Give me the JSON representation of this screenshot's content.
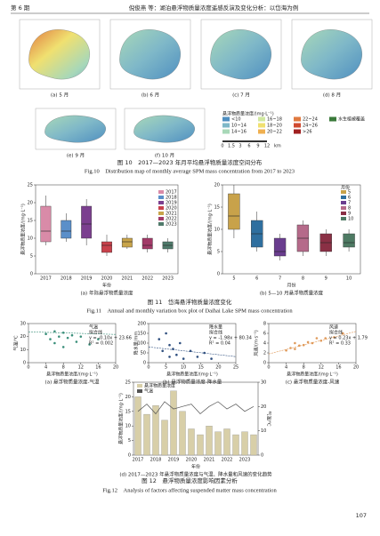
{
  "header": {
    "issue": "第 6 期",
    "running_title": "倪俊燕 等：湖泊悬浮物质量浓度遥感反演及变化分析：以岱海为例"
  },
  "figure10": {
    "panels": [
      "(a) 5 月",
      "(b) 6 月",
      "(c) 7 月",
      "(d) 8 月",
      "(e) 9 月",
      "(f) 10 月"
    ],
    "legend": {
      "title": "悬浮物质量浓度/(mg·L⁻¹)",
      "items": [
        {
          "label": "<10",
          "color": "#4f8fc0"
        },
        {
          "label": "10~14",
          "color": "#7fb8c8"
        },
        {
          "label": "14~16",
          "color": "#a8d8b8"
        },
        {
          "label": "16~18",
          "color": "#d0e8a0"
        },
        {
          "label": "18~20",
          "color": "#f0e070"
        },
        {
          "label": "20~22",
          "color": "#f0b050"
        },
        {
          "label": "22~24",
          "color": "#e07a40"
        },
        {
          "label": "24~26",
          "color": "#d04a30"
        },
        {
          "label": ">26",
          "color": "#a02020"
        },
        {
          "label": "水生植被覆盖",
          "color": "#3a7a3a"
        }
      ]
    },
    "scale_labels": [
      "0",
      "1.5",
      "3",
      "6",
      "9",
      "12"
    ],
    "scale_unit": "km",
    "caption_cn": "图 10　2017—2023 年月平均悬浮物质量浓度空间分布",
    "caption_en": "Fig.10　Distribution map of monthly average SPM mass concentration from 2017 to 2023"
  },
  "figure11": {
    "charts": [
      {
        "type": "box",
        "sublabel": "(a) 年际悬浮物质量浓度",
        "xlabel": "年份",
        "ylabel": "悬浮物质量浓度/(mg·L⁻¹)",
        "categories": [
          "2017",
          "2018",
          "2019",
          "2020",
          "2021",
          "2022",
          "2023"
        ],
        "colors": [
          "#d98ba8",
          "#5b8fc9",
          "#7b3f8f",
          "#c8414b",
          "#c8a44a",
          "#a23a68",
          "#4f7a6b"
        ],
        "boxes": [
          [
            8,
            9,
            12,
            19,
            22
          ],
          [
            9,
            10,
            12,
            15,
            17
          ],
          [
            8,
            10,
            14,
            19,
            21
          ],
          [
            5,
            6,
            8,
            9,
            11
          ],
          [
            7,
            7.5,
            9,
            10,
            11
          ],
          [
            6,
            7,
            8,
            10,
            11
          ],
          [
            6,
            7,
            8,
            9,
            10
          ]
        ],
        "ylim": [
          0,
          25
        ],
        "yticks": [
          0,
          5,
          10,
          15,
          20,
          25
        ]
      },
      {
        "type": "box",
        "sublabel": "(b) 5—10 月悬浮物质量浓度",
        "xlabel": "月份",
        "ylabel": "悬浮物质量浓度/(mg·L⁻¹)",
        "legend_title": "月份",
        "categories": [
          "5",
          "6",
          "7",
          "8",
          "9",
          "10"
        ],
        "colors": [
          "#c8a24a",
          "#2f6f9f",
          "#6a3d8f",
          "#b56a8a",
          "#8a3045",
          "#4e7a63"
        ],
        "boxes": [
          [
            8,
            10,
            13,
            18,
            20
          ],
          [
            5,
            6,
            9,
            12,
            14
          ],
          [
            3,
            4,
            5,
            8,
            9
          ],
          [
            4,
            5,
            8,
            11,
            12
          ],
          [
            4,
            5,
            7,
            9,
            10
          ],
          [
            5,
            6,
            7,
            9,
            10
          ]
        ],
        "ylim": [
          0,
          20
        ],
        "yticks": [
          0,
          5,
          10,
          15,
          20
        ]
      }
    ],
    "caption_cn": "图 11　岱海悬浮物质量浓度变化",
    "caption_en": "Fig.11　Annual and monthly variation box plot of Daihai Lake SPM mass concentration"
  },
  "figure12": {
    "charts": [
      {
        "type": "scatter",
        "sublabel": "(a) 悬浮物质量浓度-气温",
        "xlabel": "悬浮物质量浓度/(mg·L⁻¹)",
        "ylabel": "气温/℃",
        "series_name": "气温",
        "fit_name": "拟合线",
        "annotations": [
          "y = -0.10x + 23.66",
          "R² = 0.002"
        ],
        "color": "#3a8f7a",
        "x": [
          4,
          5,
          6,
          6,
          7,
          8,
          8,
          9,
          10,
          11,
          12,
          14,
          16
        ],
        "y": [
          22,
          18,
          24,
          15,
          20,
          23,
          12,
          19,
          21,
          16,
          20,
          14,
          18
        ],
        "fit_x": [
          0,
          20
        ],
        "fit_y": [
          23.66,
          21.66
        ],
        "xlim": [
          0,
          20
        ],
        "xticks": [
          0,
          4,
          8,
          12,
          16,
          20
        ],
        "ylim": [
          0,
          30
        ],
        "yticks": [
          0,
          10,
          20,
          30
        ]
      },
      {
        "type": "scatter",
        "sublabel": "(b) 悬浮物质量浓度-降水量",
        "xlabel": "悬浮物质量浓度/(mg·L⁻¹)",
        "ylabel": "降水量/mm",
        "series_name": "降水量",
        "fit_name": "拟合线",
        "annotations": [
          "y = -1.98x + 80.34",
          "R² = 0.04"
        ],
        "color": "#2f4f7f",
        "x": [
          3,
          4,
          5,
          6,
          6,
          7,
          8,
          9,
          10,
          12,
          14,
          16,
          18
        ],
        "y": [
          120,
          60,
          150,
          30,
          90,
          70,
          40,
          100,
          20,
          60,
          30,
          50,
          20
        ],
        "fit_x": [
          0,
          25
        ],
        "fit_y": [
          80.34,
          30.84
        ],
        "xlim": [
          0,
          25
        ],
        "xticks": [
          0,
          5,
          10,
          15,
          20,
          25
        ],
        "ylim": [
          0,
          200
        ],
        "yticks": [
          0,
          50,
          100,
          150,
          200
        ]
      },
      {
        "type": "scatter",
        "sublabel": "(c) 悬浮物质量浓度-风速",
        "xlabel": "悬浮物质量浓度/(mg·L⁻¹)",
        "ylabel": "风速/(m·s⁻¹)",
        "series_name": "风速",
        "fit_name": "拟合线",
        "annotations": [
          "y = 0.23x + 1.79",
          "R² = 0.33"
        ],
        "color": "#e09a5a",
        "x": [
          4,
          5,
          6,
          6,
          7,
          8,
          9,
          10,
          11,
          12,
          13,
          15,
          17
        ],
        "y": [
          2.5,
          3,
          2.8,
          4,
          3.5,
          3.6,
          4.2,
          4,
          5,
          4.5,
          5,
          5.2,
          6
        ],
        "fit_x": [
          0,
          20
        ],
        "fit_y": [
          1.79,
          6.39
        ],
        "xlim": [
          0,
          20
        ],
        "xticks": [
          0,
          4,
          8,
          12,
          16,
          20
        ],
        "ylim": [
          0,
          8
        ],
        "yticks": [
          0,
          2,
          4,
          6,
          8
        ]
      },
      {
        "type": "barline",
        "sublabel": "(d) 2017—2023 年悬浮物质量浓度与气温、降水量和风速的变化趋势",
        "xlabel": "年份",
        "ylabel": "悬浮物质量浓度/(mg·L⁻¹)",
        "y2label": "气温/℃",
        "categories": [
          "2017",
          null,
          "2018",
          null,
          "2019",
          null,
          "2020",
          null,
          "2021",
          null,
          "2022",
          null,
          "2023",
          null
        ],
        "series": [
          {
            "name": "悬浮物质量浓度",
            "color": "#d8cfa8",
            "values": [
              20,
              14,
              17,
              12,
              22,
              15,
              9,
              7,
              10,
              8,
              9,
              7,
              8,
              7
            ]
          },
          {
            "name": "气温",
            "color": "#555555",
            "axis": "y2",
            "values": [
              18,
              21,
              17,
              22,
              19,
              20,
              21,
              17,
              20,
              22,
              19,
              21,
              18,
              20
            ]
          }
        ],
        "ylim": [
          0,
          25
        ],
        "yticks": [
          0,
          5,
          10,
          15,
          20,
          25
        ],
        "y2lim": [
          0,
          30
        ],
        "y2ticks": [
          0,
          10,
          20,
          30
        ]
      }
    ],
    "caption_cn": "图 12　悬浮物质量浓度影响因素分析",
    "caption_en": "Fig.12　Analysis of factors affecting suspended matter mass concentration"
  },
  "page_number": "107"
}
